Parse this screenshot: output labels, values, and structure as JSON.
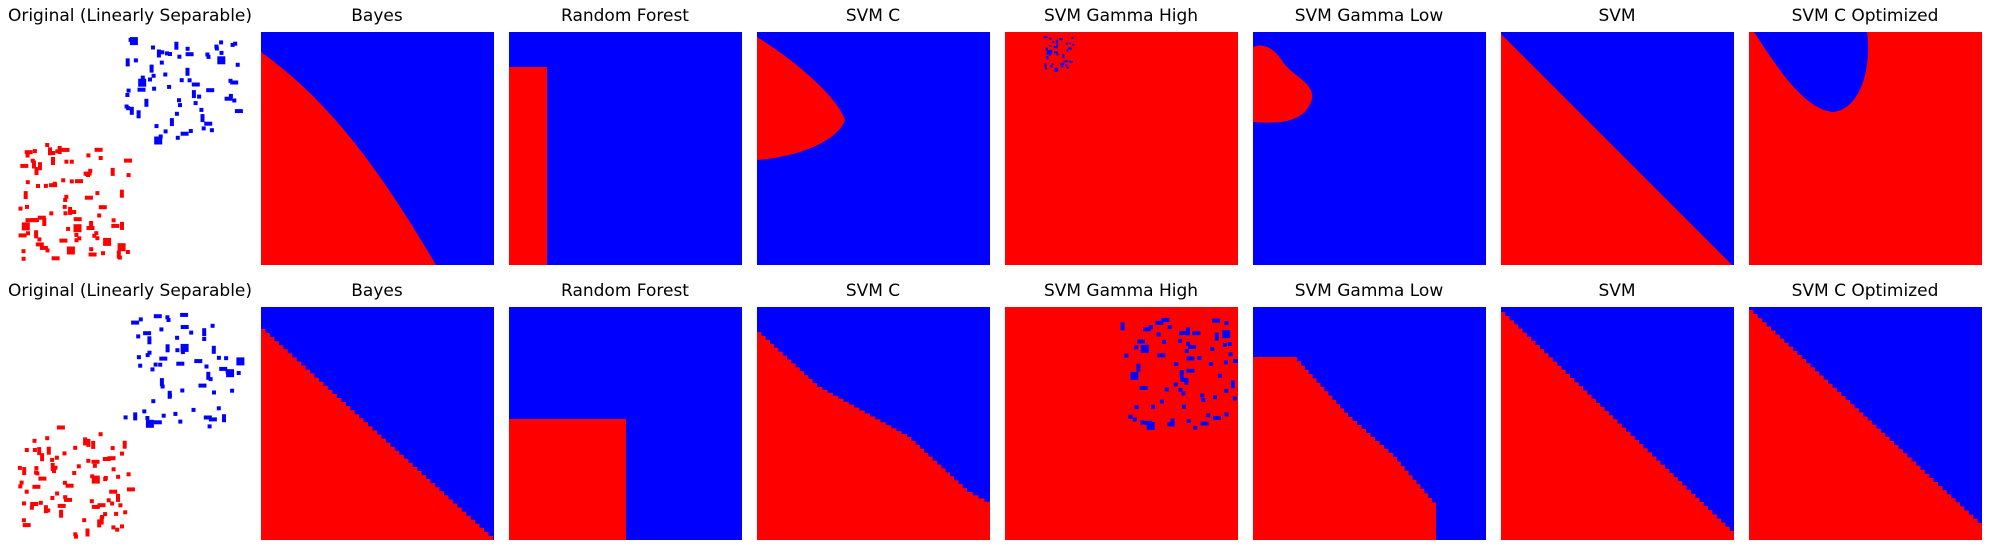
{
  "colors": {
    "class_a": "#ff0000",
    "class_b": "#0000ff",
    "background": "#ffffff"
  },
  "chart_data": [
    {
      "type": "heatmap",
      "row": 0,
      "panels": [
        {
          "title": "Original (Linearly Separable)",
          "kind": "scatter"
        },
        {
          "title": "Bayes",
          "kind": "decision-region"
        },
        {
          "title": "Random Forest",
          "kind": "decision-region"
        },
        {
          "title": "SVM C",
          "kind": "decision-region"
        },
        {
          "title": "SVM Gamma High",
          "kind": "decision-region"
        },
        {
          "title": "SVM Gamma Low",
          "kind": "decision-region"
        },
        {
          "title": "SVM",
          "kind": "decision-region"
        },
        {
          "title": "SVM C Optimized",
          "kind": "decision-region"
        }
      ]
    },
    {
      "type": "heatmap",
      "row": 1,
      "panels": [
        {
          "title": "Original (Linearly Separable)",
          "kind": "scatter"
        },
        {
          "title": "Bayes",
          "kind": "decision-region"
        },
        {
          "title": "Random Forest",
          "kind": "decision-region"
        },
        {
          "title": "SVM C",
          "kind": "decision-region"
        },
        {
          "title": "SVM Gamma High",
          "kind": "decision-region"
        },
        {
          "title": "SVM Gamma Low",
          "kind": "decision-region"
        },
        {
          "title": "SVM",
          "kind": "decision-region"
        },
        {
          "title": "SVM C Optimized",
          "kind": "decision-region"
        }
      ]
    }
  ]
}
